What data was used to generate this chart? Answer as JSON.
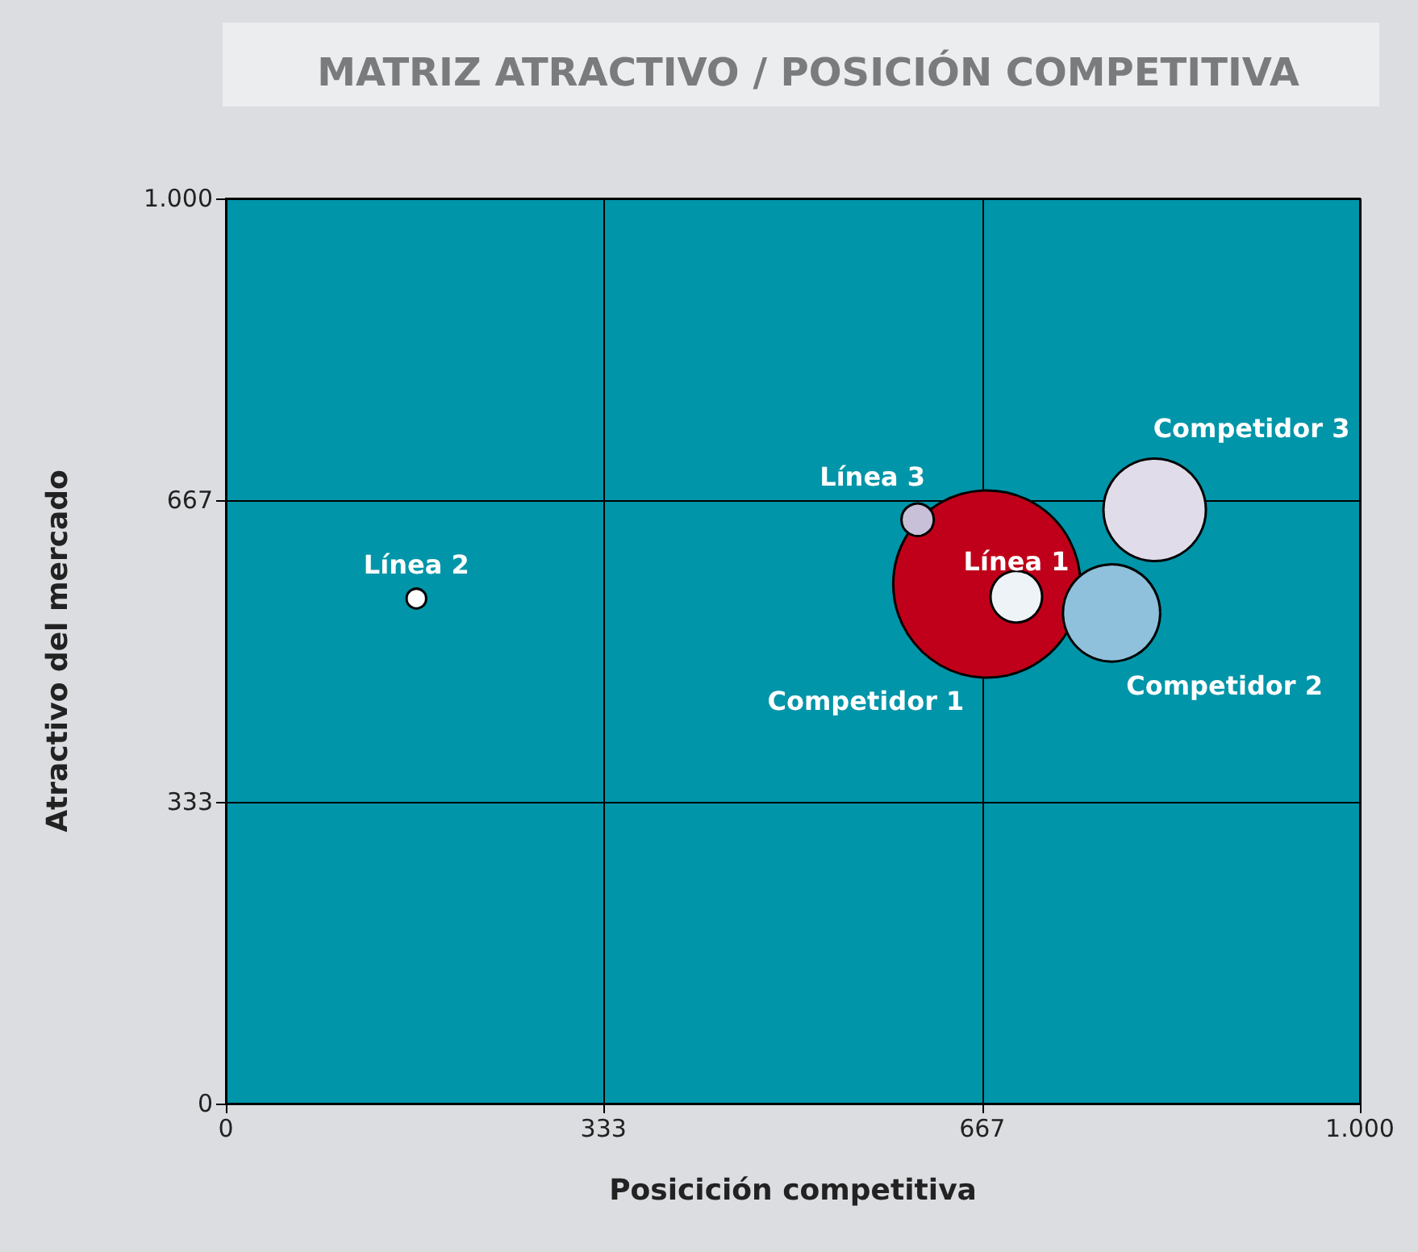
{
  "chart_data": {
    "type": "bubble",
    "title": "MATRIZ ATRACTIVO / POSICIÓN COMPETITIVA",
    "xlabel": "Posicición competitiva",
    "ylabel": "Atractivo del mercado",
    "xlim": [
      0,
      1000
    ],
    "xticks": [
      0,
      333,
      667,
      {
        "value": 1000,
        "label": "1.000"
      }
    ],
    "ylim": [
      0,
      1000
    ],
    "yticks": [
      0,
      333,
      667,
      {
        "value": 1000,
        "label": "1.000"
      }
    ],
    "grid": true,
    "series": [
      {
        "name": "Competidor 1",
        "color": "#c0001a",
        "x": [
          671
        ],
        "values": [
          574
        ],
        "sizes": [
          1
        ]
      },
      {
        "name": "Línea 1",
        "color": "#eef3f8",
        "x": [
          697
        ],
        "values": [
          560
        ],
        "sizes": [
          0.076
        ]
      },
      {
        "name": "Competidor 2",
        "color": "#8fc1dc",
        "x": [
          781
        ],
        "values": [
          542
        ],
        "sizes": [
          0.27
        ]
      },
      {
        "name": "Competidor 3",
        "color": "#e0dcea",
        "x": [
          819
        ],
        "values": [
          656
        ],
        "sizes": [
          0.3
        ]
      },
      {
        "name": "Línea 3",
        "color": "#c8bfd8",
        "x": [
          610
        ],
        "values": [
          645
        ],
        "sizes": [
          0.03
        ]
      },
      {
        "name": "Línea 2",
        "color": "#ffffff",
        "x": [
          168
        ],
        "values": [
          558
        ],
        "sizes": [
          0.011
        ]
      }
    ]
  }
}
